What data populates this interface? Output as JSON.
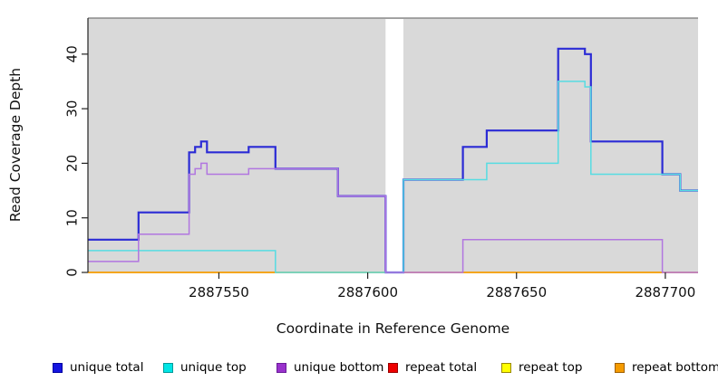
{
  "chart_data": {
    "type": "line",
    "subtype": "step-coverage",
    "title": "",
    "xlabel": "Coordinate in Reference Genome",
    "ylabel": "Read Coverage Depth",
    "x_ticks": [
      2887550,
      2887600,
      2887650,
      2887700
    ],
    "y_ticks": [
      0,
      10,
      20,
      30,
      40
    ],
    "xlim": [
      2887506,
      2887711
    ],
    "ylim": [
      0,
      46.6
    ],
    "grid": "off",
    "plot_background": "#d9d9d9",
    "gap_region": {
      "x_start": 2887606,
      "x_end": 2887612,
      "color": "#ffffff"
    },
    "legend_position": "bottom",
    "series": [
      {
        "name": "repeat total",
        "color": "#dd1111",
        "width": 1.1,
        "layer": "below-gap",
        "points": [
          [
            2887506,
            0
          ],
          [
            2887711,
            0
          ]
        ]
      },
      {
        "name": "repeat top",
        "color": "#f5e400",
        "width": 1.1,
        "layer": "below-gap",
        "points": [
          [
            2887506,
            0
          ],
          [
            2887711,
            0
          ]
        ]
      },
      {
        "name": "repeat bottom",
        "color": "#f59b00",
        "width": 1.7,
        "layer": "below-gap",
        "points": [
          [
            2887506,
            0
          ],
          [
            2887711,
            0
          ]
        ]
      },
      {
        "name": "unique total",
        "color": "#2b2bd5",
        "width": 2.2,
        "layer": "above-gap",
        "points": [
          [
            2887506,
            6
          ],
          [
            2887523,
            11
          ],
          [
            2887540,
            22
          ],
          [
            2887542,
            23
          ],
          [
            2887544,
            24
          ],
          [
            2887546,
            22
          ],
          [
            2887560,
            23
          ],
          [
            2887569,
            19
          ],
          [
            2887590,
            14
          ],
          [
            2887606,
            0
          ],
          [
            2887612,
            17
          ],
          [
            2887632,
            23
          ],
          [
            2887640,
            26
          ],
          [
            2887664,
            41
          ],
          [
            2887673,
            40
          ],
          [
            2887675,
            24
          ],
          [
            2887699,
            18
          ],
          [
            2887705,
            15
          ],
          [
            2887711,
            15
          ]
        ]
      },
      {
        "name": "unique top",
        "color": "#57dce2",
        "width": 1.5,
        "layer": "above-gap",
        "points": [
          [
            2887506,
            4
          ],
          [
            2887569,
            0
          ],
          [
            2887612,
            17
          ],
          [
            2887640,
            20
          ],
          [
            2887664,
            35
          ],
          [
            2887673,
            34
          ],
          [
            2887675,
            18
          ],
          [
            2887705,
            15
          ],
          [
            2887711,
            15
          ]
        ]
      },
      {
        "name": "unique bottom",
        "color": "#b176e0",
        "width": 1.5,
        "layer": "above-gap",
        "points": [
          [
            2887506,
            2
          ],
          [
            2887523,
            7
          ],
          [
            2887540,
            18
          ],
          [
            2887542,
            19
          ],
          [
            2887544,
            20
          ],
          [
            2887546,
            18
          ],
          [
            2887560,
            19
          ],
          [
            2887590,
            14
          ],
          [
            2887606,
            0
          ],
          [
            2887632,
            6
          ],
          [
            2887699,
            0
          ],
          [
            2887711,
            0
          ]
        ]
      }
    ],
    "legend": [
      {
        "label": "unique total",
        "fill": "#1515e0",
        "border": "#0000a0"
      },
      {
        "label": "unique top",
        "fill": "#00e5e5",
        "border": "#009999"
      },
      {
        "label": "unique bottom",
        "fill": "#9932cc",
        "border": "#6a1b9a"
      },
      {
        "label": "repeat total",
        "fill": "#ee0000",
        "border": "#990000"
      },
      {
        "label": "repeat top",
        "fill": "#ffff00",
        "border": "#998800"
      },
      {
        "label": "repeat bottom",
        "fill": "#f59b00",
        "border": "#a06000"
      }
    ]
  }
}
